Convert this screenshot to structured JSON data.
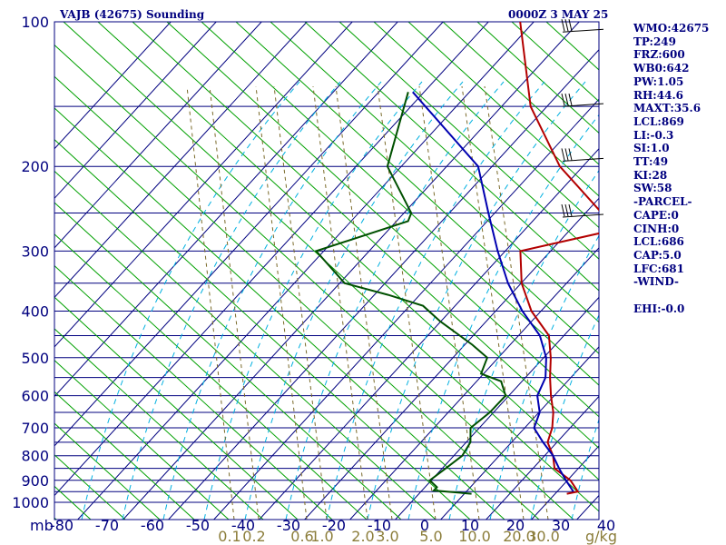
{
  "chart_data": {
    "type": "skew-t sounding",
    "title": "VAJB (42675) Sounding",
    "valid_time": "0000Z  3 MAY 25",
    "pressure_ticks": [
      100,
      200,
      300,
      400,
      500,
      600,
      700,
      800,
      900,
      1000
    ],
    "pressure_unit": "mb",
    "temperature_ticks": [
      -80,
      -70,
      -60,
      -50,
      -40,
      -30,
      -20,
      -10,
      0,
      10,
      20,
      30,
      40
    ],
    "mixing_ratio_labels": [
      "0.1",
      "0.2",
      "0.6",
      "1.0",
      "2.0",
      "3.0",
      "5.0",
      "10.0",
      "20.0",
      "30.0"
    ],
    "mixing_ratio_unit": "g/kg",
    "isobars_mb": [
      100,
      150,
      200,
      250,
      300,
      350,
      400,
      450,
      500,
      550,
      600,
      650,
      700,
      750,
      800,
      850,
      900,
      950,
      1000
    ],
    "ylim": [
      1000,
      100
    ],
    "xlim": [
      -80,
      40
    ],
    "series": [
      {
        "role": "temperature",
        "color": "#b30000",
        "points": [
          [
            100,
            -83
          ],
          [
            150,
            -63
          ],
          [
            200,
            -44
          ],
          [
            250,
            -25
          ],
          [
            260,
            -12
          ],
          [
            300,
            -35
          ],
          [
            350,
            -28
          ],
          [
            400,
            -20
          ],
          [
            450,
            -11
          ],
          [
            500,
            -6
          ],
          [
            550,
            -2
          ],
          [
            600,
            2
          ],
          [
            650,
            6
          ],
          [
            700,
            9
          ],
          [
            750,
            11
          ],
          [
            800,
            15
          ],
          [
            850,
            18
          ],
          [
            900,
            24
          ],
          [
            950,
            28
          ],
          [
            960,
            26
          ]
        ]
      },
      {
        "role": "dewpoint",
        "color": "#005000",
        "points": [
          [
            140,
            -93
          ],
          [
            200,
            -82
          ],
          [
            250,
            -67
          ],
          [
            260,
            -66
          ],
          [
            300,
            -80
          ],
          [
            350,
            -67
          ],
          [
            370,
            -55
          ],
          [
            390,
            -45
          ],
          [
            420,
            -38
          ],
          [
            470,
            -26
          ],
          [
            500,
            -20
          ],
          [
            540,
            -18
          ],
          [
            560,
            -12
          ],
          [
            600,
            -8
          ],
          [
            650,
            -8
          ],
          [
            700,
            -9
          ],
          [
            750,
            -6
          ],
          [
            800,
            -5
          ],
          [
            850,
            -6
          ],
          [
            900,
            -7
          ],
          [
            930,
            -4
          ],
          [
            945,
            -4
          ],
          [
            960,
            5
          ]
        ]
      },
      {
        "role": "parcel",
        "color": "#0000b0",
        "points": [
          [
            140,
            -92
          ],
          [
            200,
            -62
          ],
          [
            250,
            -50
          ],
          [
            300,
            -40
          ],
          [
            350,
            -31
          ],
          [
            400,
            -22
          ],
          [
            450,
            -13
          ],
          [
            500,
            -7
          ],
          [
            550,
            -3
          ],
          [
            600,
            -1
          ],
          [
            650,
            3
          ],
          [
            700,
            5
          ],
          [
            750,
            10
          ],
          [
            800,
            15
          ],
          [
            850,
            19
          ],
          [
            900,
            23
          ],
          [
            950,
            27
          ]
        ]
      }
    ],
    "wind_barbs_mb": [
      105,
      150,
      195,
      255
    ],
    "indices": [
      "WMO:42675",
      "TP:249",
      "FRZ:600",
      "WB0:642",
      "PW:1.05",
      "RH:44.6",
      "MAXT:35.6",
      "LCL:869",
      "LI:-0.3",
      "SI:1.0",
      "TT:49",
      "KI:28",
      "SW:58",
      "-PARCEL-",
      "CAPE:0",
      "CINH:0",
      "LCL:686",
      "CAP:5.0",
      "LFC:681",
      "-WIND-",
      "",
      "EHI:-0.0"
    ],
    "colors": {
      "grid": "#00007f",
      "dry_adiabat": "#00a000",
      "moist_adiabat": "#00b0e0",
      "mixing_ratio": "#7a6a2a",
      "temperature": "#b30000",
      "dewpoint": "#005000",
      "parcel": "#0000b0",
      "barb": "#000000"
    }
  }
}
